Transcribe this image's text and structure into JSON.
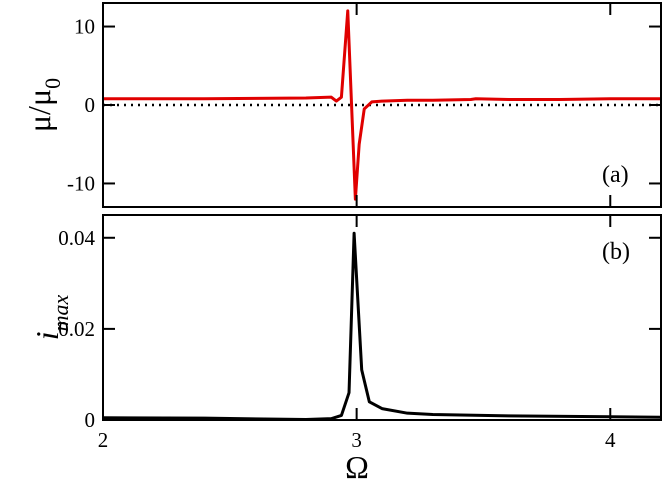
{
  "chart_data": [
    {
      "type": "line",
      "ylabel": "μ/μ",
      "ylabel_sub": "0",
      "panel_label": "(a)",
      "xlim": [
        2,
        4.2
      ],
      "ylim": [
        -13,
        13
      ],
      "yticks": [
        -10,
        0,
        10
      ],
      "reference_line": 0,
      "x": [
        2,
        2.2,
        2.4,
        2.6,
        2.8,
        2.9,
        2.92,
        2.94,
        2.965,
        2.995,
        3.01,
        3.03,
        3.06,
        3.1,
        3.2,
        3.3,
        3.45,
        3.47,
        3.6,
        3.8,
        4.0,
        4.2
      ],
      "series": [
        {
          "color": "#e00000",
          "values": [
            0.8,
            0.8,
            0.8,
            0.85,
            0.9,
            1.0,
            0.5,
            1.0,
            12,
            -12,
            -5,
            -0.5,
            0.4,
            0.5,
            0.6,
            0.6,
            0.7,
            0.8,
            0.7,
            0.7,
            0.8,
            0.8
          ]
        }
      ]
    },
    {
      "type": "line",
      "ylabel": "i",
      "ylabel_sub": "max",
      "panel_label": "(b)",
      "xlabel": "Ω",
      "xlim": [
        2,
        4.2
      ],
      "ylim": [
        0,
        0.045
      ],
      "xticks": [
        2,
        3,
        4
      ],
      "yticks": [
        0,
        0.02,
        0.04
      ],
      "x": [
        2,
        2.4,
        2.8,
        2.9,
        2.94,
        2.97,
        2.99,
        3.02,
        3.05,
        3.1,
        3.2,
        3.3,
        3.6,
        4.0,
        4.2
      ],
      "series": [
        {
          "color": "#000000",
          "values": [
            0.0005,
            0.0004,
            0.0001,
            0.0003,
            0.001,
            0.006,
            0.041,
            0.011,
            0.004,
            0.0025,
            0.0015,
            0.0012,
            0.0009,
            0.0007,
            0.0006
          ]
        }
      ]
    }
  ]
}
